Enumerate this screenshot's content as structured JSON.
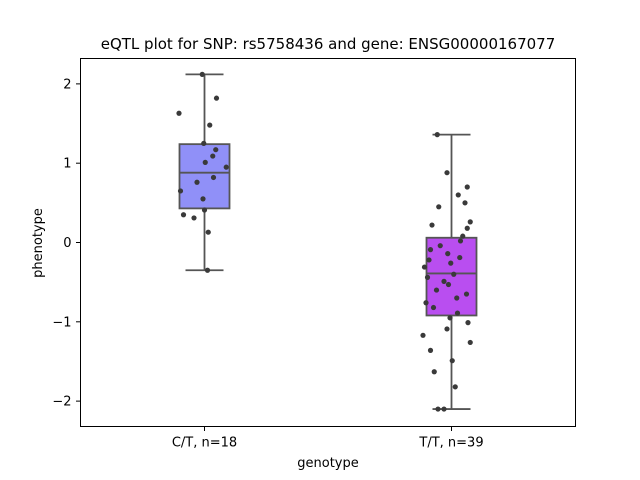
{
  "chart_data": {
    "type": "boxplot",
    "title": "eQTL plot for SNP: rs5758436 and gene: ENSG00000167077",
    "xlabel": "genotype",
    "ylabel": "phenotype",
    "ylim": [
      -2.32,
      2.32
    ],
    "yticks": [
      -2,
      -1,
      0,
      1,
      2
    ],
    "ytick_labels": [
      "−2",
      "−1",
      "0",
      "1",
      "2"
    ],
    "grid": false,
    "categories": [
      "C/T, n=18",
      "T/T, n=39"
    ],
    "groups": [
      {
        "category": "C/T, n=18",
        "color": "#9090f8",
        "box": {
          "whisker_low": -0.35,
          "q1": 0.43,
          "median": 0.88,
          "q3": 1.24,
          "whisker_high": 2.12
        },
        "points": [
          {
            "x": -0.03,
            "y": 2.12
          },
          {
            "x": 0.16,
            "y": 1.82
          },
          {
            "x": -0.34,
            "y": 1.63
          },
          {
            "x": 0.07,
            "y": 1.48
          },
          {
            "x": -0.01,
            "y": 1.25
          },
          {
            "x": 0.15,
            "y": 1.17
          },
          {
            "x": 0.11,
            "y": 1.09
          },
          {
            "x": 0.01,
            "y": 1.01
          },
          {
            "x": 0.29,
            "y": 0.95
          },
          {
            "x": 0.12,
            "y": 0.82
          },
          {
            "x": -0.1,
            "y": 0.76
          },
          {
            "x": -0.32,
            "y": 0.65
          },
          {
            "x": -0.02,
            "y": 0.55
          },
          {
            "x": 0.0,
            "y": 0.41
          },
          {
            "x": -0.28,
            "y": 0.35
          },
          {
            "x": -0.14,
            "y": 0.31
          },
          {
            "x": 0.05,
            "y": 0.13
          },
          {
            "x": 0.04,
            "y": -0.35
          }
        ]
      },
      {
        "category": "T/T, n=39",
        "color": "#b94ef0",
        "box": {
          "whisker_low": -2.1,
          "q1": -0.92,
          "median": -0.39,
          "q3": 0.06,
          "whisker_high": 1.36
        },
        "points": [
          {
            "x": -0.19,
            "y": 1.36
          },
          {
            "x": -0.06,
            "y": 0.88
          },
          {
            "x": 0.21,
            "y": 0.7
          },
          {
            "x": 0.09,
            "y": 0.6
          },
          {
            "x": 0.18,
            "y": 0.5
          },
          {
            "x": -0.17,
            "y": 0.45
          },
          {
            "x": 0.25,
            "y": 0.26
          },
          {
            "x": -0.26,
            "y": 0.22
          },
          {
            "x": 0.21,
            "y": 0.18
          },
          {
            "x": 0.15,
            "y": 0.08
          },
          {
            "x": 0.12,
            "y": 0.02
          },
          {
            "x": -0.15,
            "y": -0.04
          },
          {
            "x": -0.28,
            "y": -0.09
          },
          {
            "x": -0.05,
            "y": -0.14
          },
          {
            "x": 0.11,
            "y": -0.19
          },
          {
            "x": -0.3,
            "y": -0.22
          },
          {
            "x": -0.01,
            "y": -0.26
          },
          {
            "x": -0.36,
            "y": -0.31
          },
          {
            "x": 0.03,
            "y": -0.4
          },
          {
            "x": -0.32,
            "y": -0.44
          },
          {
            "x": -0.1,
            "y": -0.49
          },
          {
            "x": -0.04,
            "y": -0.53
          },
          {
            "x": 0.2,
            "y": -0.65
          },
          {
            "x": 0.07,
            "y": -0.7
          },
          {
            "x": -0.2,
            "y": -0.6
          },
          {
            "x": -0.34,
            "y": -0.76
          },
          {
            "x": -0.24,
            "y": -0.82
          },
          {
            "x": 0.08,
            "y": -0.89
          },
          {
            "x": -0.02,
            "y": -0.95
          },
          {
            "x": 0.22,
            "y": -1.01
          },
          {
            "x": -0.06,
            "y": -1.09
          },
          {
            "x": -0.38,
            "y": -1.17
          },
          {
            "x": 0.25,
            "y": -1.26
          },
          {
            "x": -0.28,
            "y": -1.36
          },
          {
            "x": 0.01,
            "y": -1.49
          },
          {
            "x": -0.23,
            "y": -1.63
          },
          {
            "x": 0.05,
            "y": -1.82
          },
          {
            "x": -0.1,
            "y": -2.1
          },
          {
            "x": -0.18,
            "y": -2.1
          }
        ]
      }
    ]
  }
}
